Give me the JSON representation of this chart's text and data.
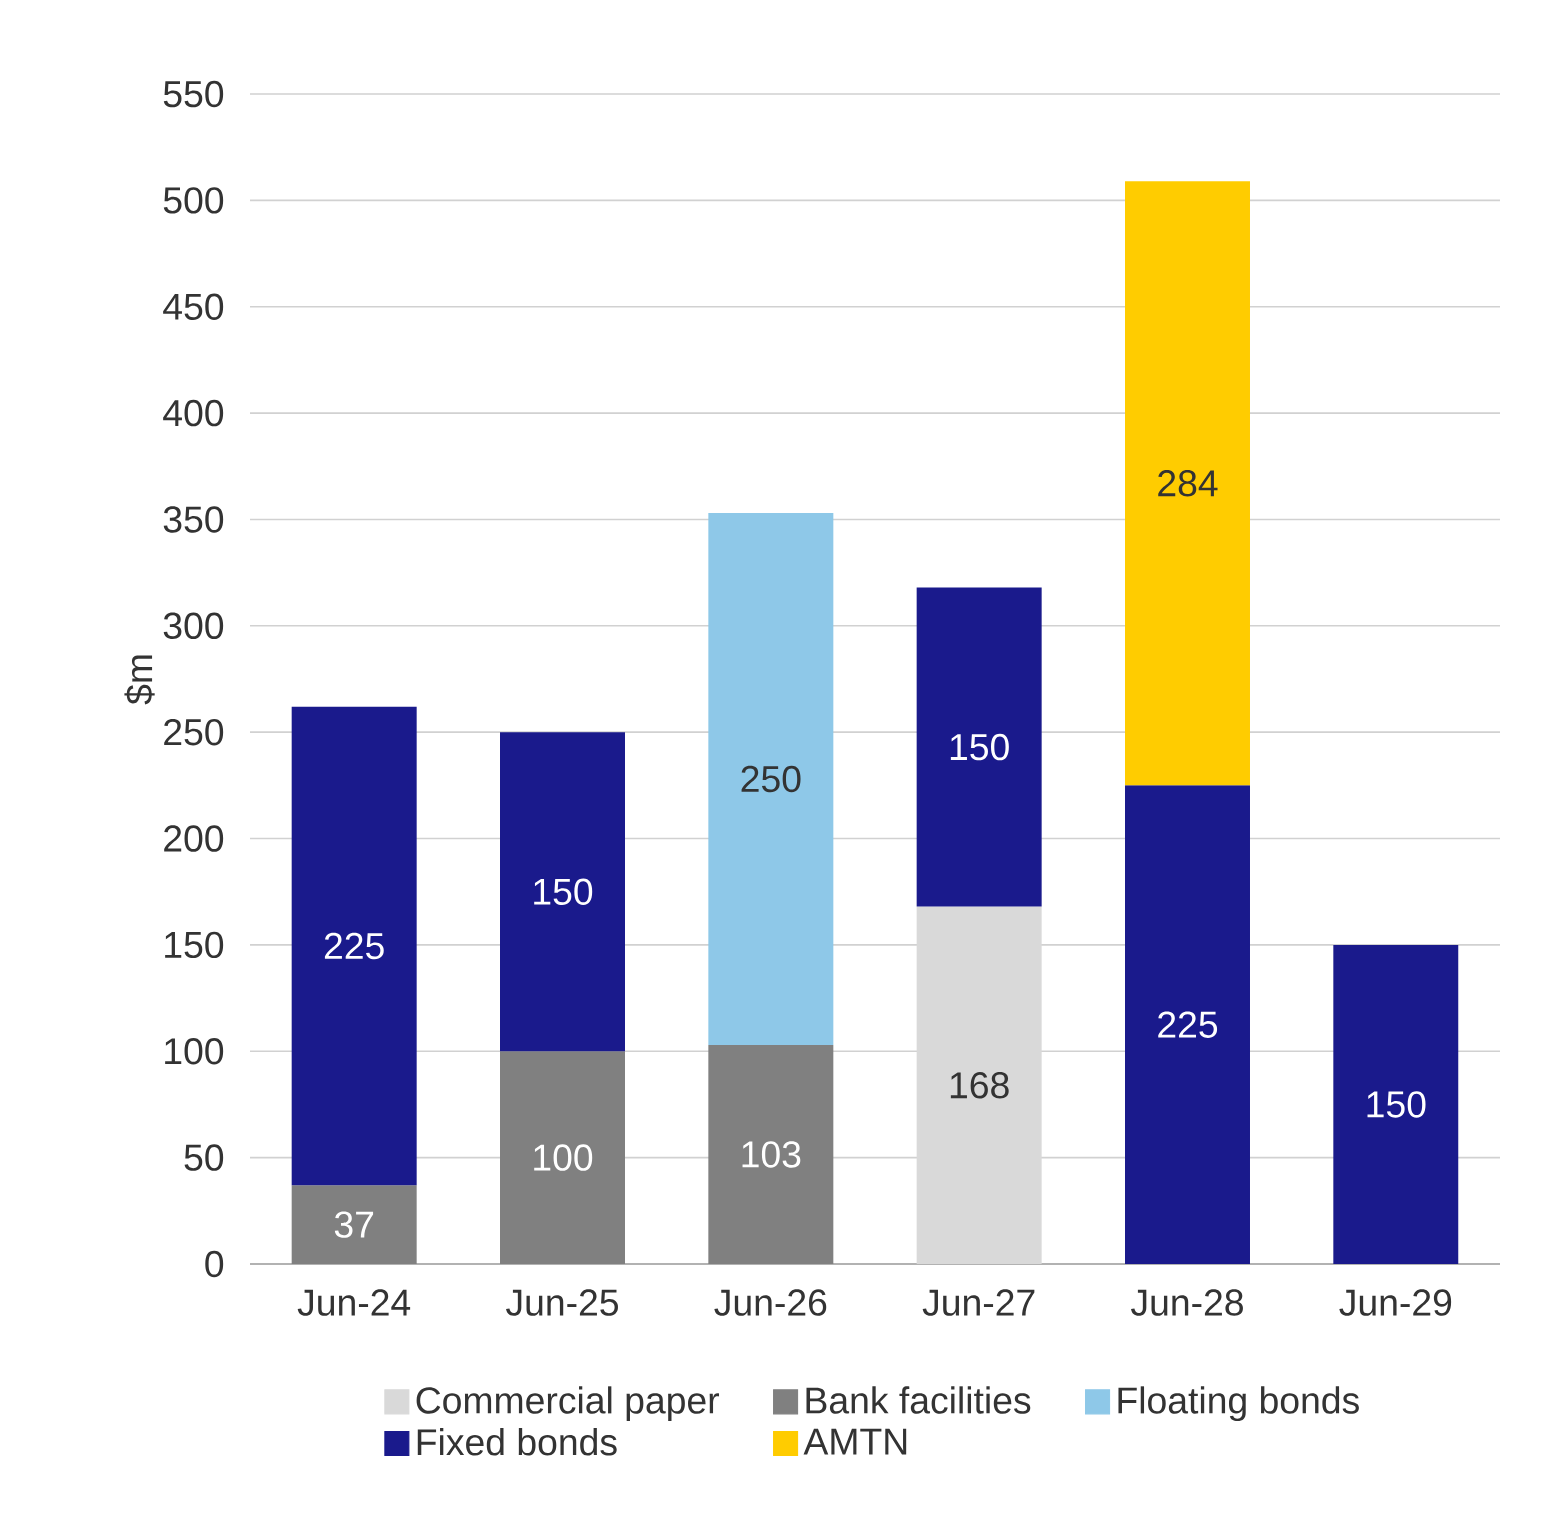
{
  "chart_data": {
    "type": "bar",
    "stacked": true,
    "ylabel": "$m",
    "categories": [
      "Jun-24",
      "Jun-25",
      "Jun-26",
      "Jun-27",
      "Jun-28",
      "Jun-29"
    ],
    "series": [
      {
        "name": "Commercial paper",
        "color": "#d9d9d9",
        "values": [
          null,
          null,
          null,
          168,
          null,
          null
        ]
      },
      {
        "name": "Bank facilities",
        "color": "#808080",
        "values": [
          37,
          100,
          103,
          null,
          null,
          null
        ]
      },
      {
        "name": "Floating bonds",
        "color": "#8ec8e8",
        "values": [
          null,
          null,
          250,
          null,
          null,
          null
        ]
      },
      {
        "name": "Fixed bonds",
        "color": "#1a1a8c",
        "values": [
          225,
          150,
          null,
          150,
          225,
          150
        ]
      },
      {
        "name": "AMTN",
        "color": "#ffcc00",
        "values": [
          null,
          null,
          null,
          null,
          284,
          null
        ]
      }
    ],
    "ylim": [
      0,
      550
    ],
    "yticks": [
      0,
      50,
      100,
      150,
      200,
      250,
      300,
      350,
      400,
      450,
      500,
      550
    ],
    "grid": "y",
    "legend": "bottom",
    "data_labels": true
  }
}
